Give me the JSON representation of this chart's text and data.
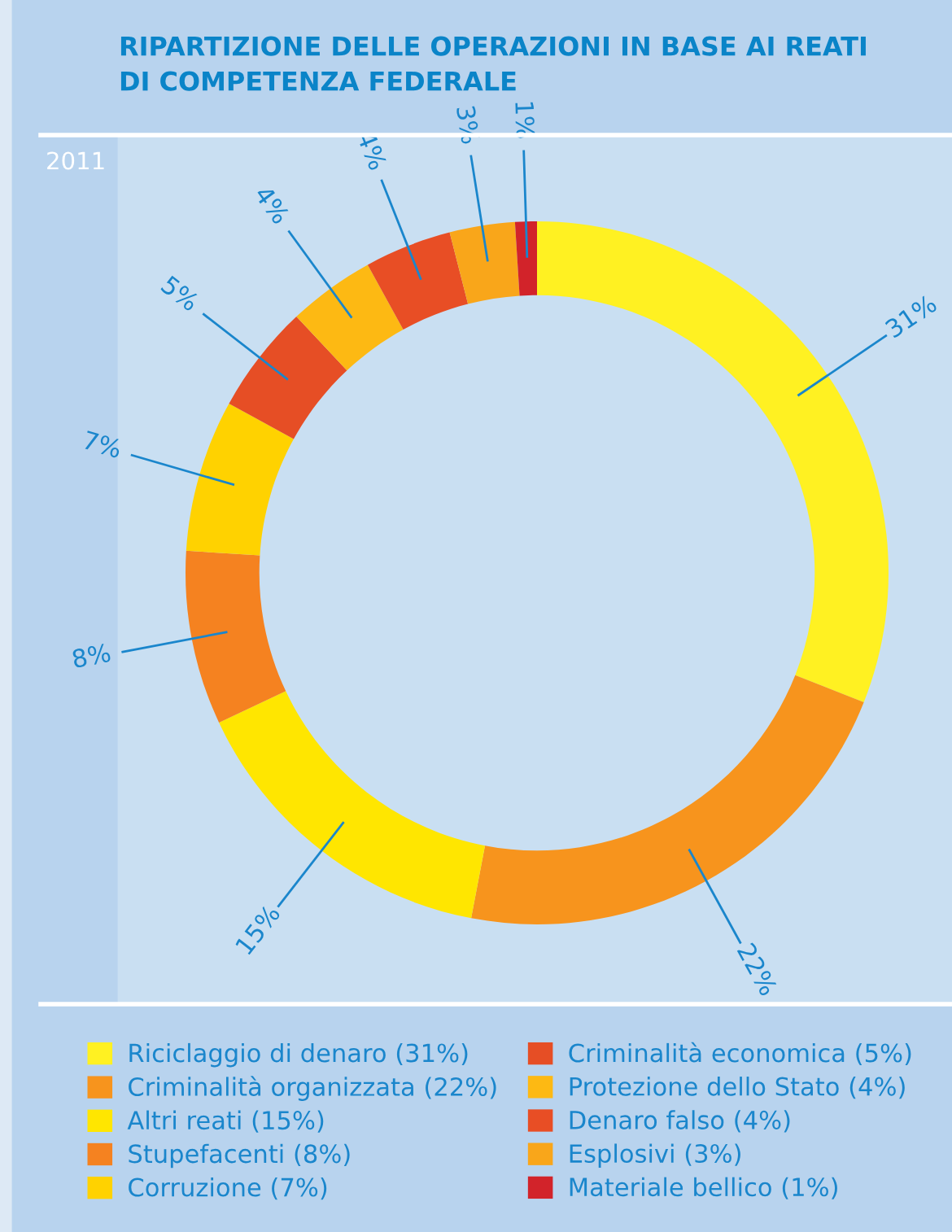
{
  "chart_data": {
    "type": "donut",
    "title": "RIPARTIZIONE DELLE OPERAZIONI IN BASE AI REATI\nDI COMPETENZA FEDERALE",
    "annotations": [
      "2011"
    ],
    "categories": [
      "Riciclaggio di denaro (31%)",
      "Criminalità organizzata (22%)",
      "Altri reati (15%)",
      "Stupefacenti (8%)",
      "Corruzione (7%)",
      "Criminalità economica (5%)",
      "Protezione dello Stato (4%)",
      "Denaro falso (4%)",
      "Esplosivi (3%)",
      "Materiale bellico (1%)"
    ],
    "values": [
      31,
      22,
      15,
      8,
      7,
      5,
      4,
      4,
      3,
      1
    ],
    "value_labels": [
      "31%",
      "22%",
      "15%",
      "8%",
      "7%",
      "5%",
      "4%",
      "4%",
      "3%",
      "1%"
    ],
    "colors": [
      "#fff122",
      "#f7941d",
      "#ffe600",
      "#f58220",
      "#ffd200",
      "#e64e25",
      "#fdb913",
      "#e84e25",
      "#f9a61a",
      "#d2232a"
    ],
    "legend": "bottom"
  }
}
